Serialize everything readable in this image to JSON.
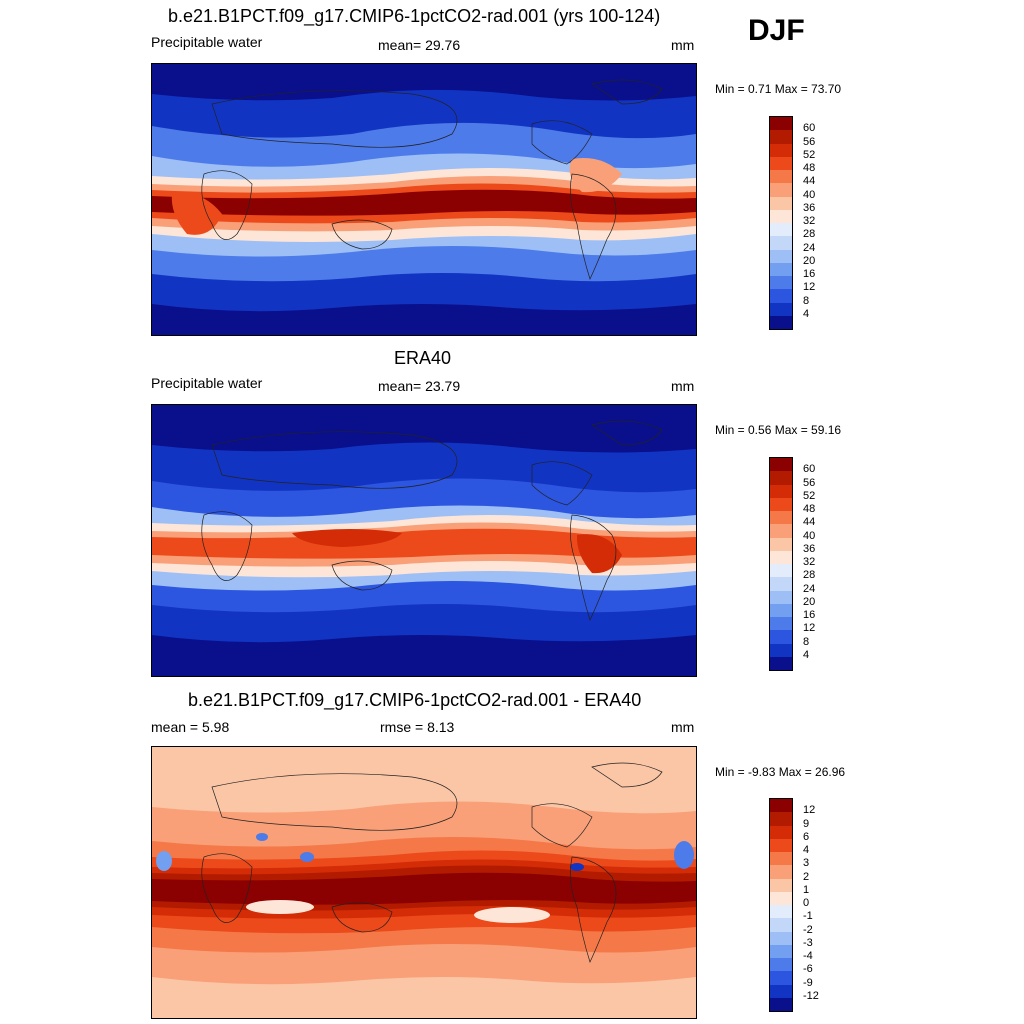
{
  "season": "DJF",
  "panels": [
    {
      "title": "b.e21.B1PCT.f09_g17.CMIP6-1pctCO2-rad.001 (yrs 100-124)",
      "left_label": "Precipitable water",
      "center_label": "mean=  29.76",
      "right_label": "mm",
      "minmax": "Min =   0.71 Max =  73.70",
      "colorbar": {
        "labels": [
          "60",
          "56",
          "52",
          "48",
          "44",
          "40",
          "36",
          "32",
          "28",
          "24",
          "20",
          "16",
          "12",
          "8",
          "4"
        ],
        "colors": [
          "#8b0000",
          "#b31b00",
          "#d32c06",
          "#ec4a1b",
          "#f57848",
          "#f9a078",
          "#fbc6a6",
          "#fde6d8",
          "#e2ecfb",
          "#c3d7f8",
          "#9dbff5",
          "#739ff0",
          "#4d7bea",
          "#2c55e0",
          "#1234c2",
          "#0a0f8c"
        ]
      },
      "map_colors": {
        "polar": "#0a0f8c",
        "cold": "#1234c2",
        "cool": "#4d7bea",
        "mild": "#9dbff5",
        "neutral": "#fde6d8",
        "warm": "#f9a078",
        "hot": "#ec4a1b",
        "max": "#8b0000"
      }
    },
    {
      "title": "ERA40",
      "left_label": "Precipitable water",
      "center_label": "mean=  23.79",
      "right_label": "mm",
      "minmax": "Min =   0.56 Max =  59.16",
      "colorbar": {
        "labels": [
          "60",
          "56",
          "52",
          "48",
          "44",
          "40",
          "36",
          "32",
          "28",
          "24",
          "20",
          "16",
          "12",
          "8",
          "4"
        ],
        "colors": [
          "#8b0000",
          "#b31b00",
          "#d32c06",
          "#ec4a1b",
          "#f57848",
          "#f9a078",
          "#fbc6a6",
          "#fde6d8",
          "#e2ecfb",
          "#c3d7f8",
          "#9dbff5",
          "#739ff0",
          "#4d7bea",
          "#2c55e0",
          "#1234c2",
          "#0a0f8c"
        ]
      },
      "map_colors": {
        "polar": "#0a0f8c",
        "cold": "#1234c2",
        "cool": "#2c55e0",
        "mild": "#9dbff5",
        "neutral": "#fde6d8",
        "warm": "#f9a078",
        "hot": "#ec4a1b",
        "max": "#d32c06"
      }
    },
    {
      "title": "b.e21.B1PCT.f09_g17.CMIP6-1pctCO2-rad.001 - ERA40",
      "left_label": "mean =   5.98",
      "center_label": "rmse =   8.13",
      "right_label": "mm",
      "minmax": "Min =  -9.83 Max =  26.96",
      "colorbar": {
        "labels": [
          "12",
          "9",
          "6",
          "4",
          "3",
          "2",
          "1",
          "0",
          "-1",
          "-2",
          "-3",
          "-4",
          "-6",
          "-9",
          "-12"
        ],
        "colors": [
          "#8b0000",
          "#b31b00",
          "#d32c06",
          "#ec4a1b",
          "#f57848",
          "#f9a078",
          "#fbc6a6",
          "#fde6d8",
          "#e2ecfb",
          "#c3d7f8",
          "#9dbff5",
          "#739ff0",
          "#4d7bea",
          "#2c55e0",
          "#1234c2",
          "#0a0f8c"
        ]
      },
      "map_colors": {
        "polar": "#fbc6a6",
        "cold": "#fbc6a6",
        "cool": "#f9a078",
        "mild": "#f57848",
        "neutral": "#ec4a1b",
        "warm": "#d32c06",
        "hot": "#b31b00",
        "max": "#8b0000"
      }
    }
  ]
}
